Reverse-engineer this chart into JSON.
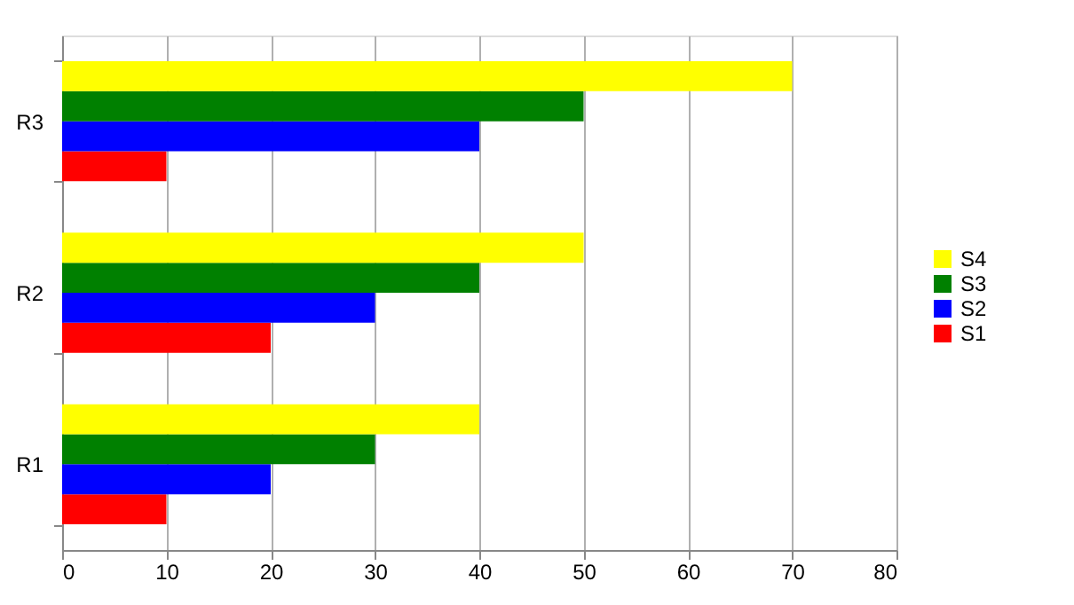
{
  "chart_data": {
    "type": "bar",
    "orientation": "horizontal",
    "categories": [
      "R3",
      "R2",
      "R1"
    ],
    "series": [
      {
        "name": "S1",
        "color": "#ff0000",
        "values": [
          10,
          20,
          10
        ]
      },
      {
        "name": "S2",
        "color": "#0000ff",
        "values": [
          40,
          30,
          20
        ]
      },
      {
        "name": "S3",
        "color": "#008000",
        "values": [
          50,
          40,
          30
        ]
      },
      {
        "name": "S4",
        "color": "#ffff00",
        "values": [
          70,
          50,
          40
        ]
      }
    ],
    "xlim": [
      0,
      80
    ],
    "xticks": [
      0,
      10,
      20,
      30,
      40,
      50,
      60,
      70,
      80
    ],
    "grid": "x",
    "legend": "right"
  }
}
